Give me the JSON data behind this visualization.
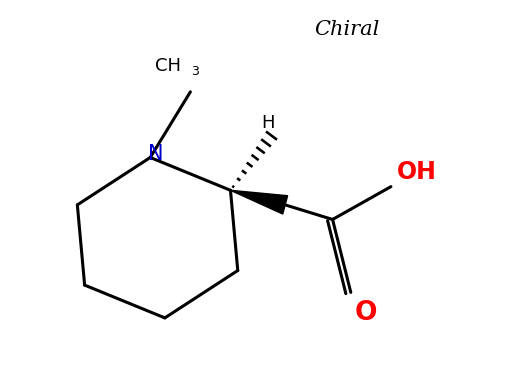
{
  "title": "Chiral",
  "background_color": "#ffffff",
  "ring_color": "#000000",
  "N_color": "#0000cc",
  "O_color": "#ff0000",
  "line_width": 2.2,
  "figsize": [
    5.12,
    3.66
  ],
  "dpi": 100,
  "xlim": [
    0.0,
    6.5
  ],
  "ylim": [
    0.0,
    5.0
  ]
}
